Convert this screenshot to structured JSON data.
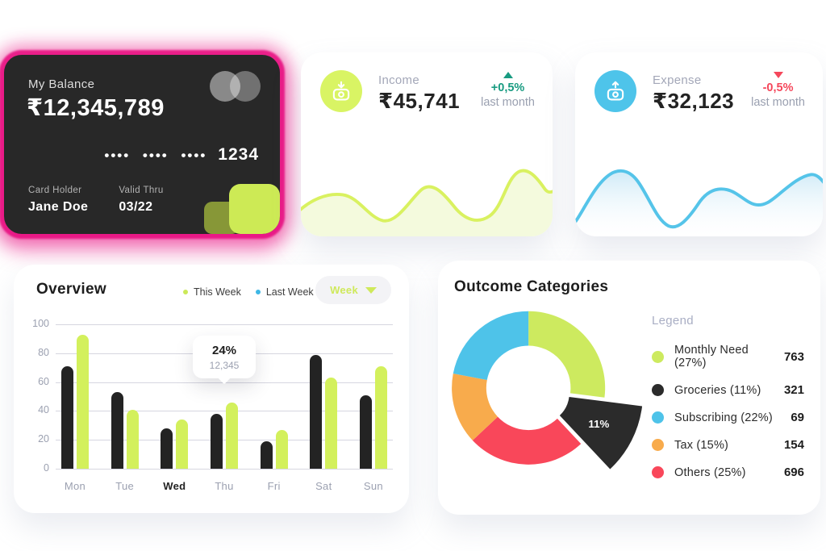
{
  "balance_card": {
    "label": "My Balance",
    "amount": "₹12,345,789",
    "masked_groups": "•••• •••• ••••",
    "last_digits": "1234",
    "card_holder_label": "Card Holder",
    "card_holder_name": "Jane Doe",
    "valid_thru_label": "Valid Thru",
    "valid_thru_value": "03/22",
    "glow_color": "#e7097e",
    "card_bg": "#282828",
    "accent_square_colors": [
      "#879737",
      "#cdea55"
    ]
  },
  "income_card": {
    "label": "Income",
    "amount": "₹45,741",
    "change": "+0,5%",
    "change_direction": "up",
    "change_color": "#189b81",
    "caption": "last month",
    "accent_color": "#d9f464"
  },
  "expense_card": {
    "label": "Expense",
    "amount": "₹32,123",
    "change": "-0,5%",
    "change_direction": "down",
    "change_color": "#f5475b",
    "caption": "last month",
    "accent_color": "#4ec4ea"
  },
  "overview": {
    "title": "Overview",
    "legend": [
      {
        "label": "This Week",
        "color": "#cbe958"
      },
      {
        "label": "Last Week",
        "color": "#3eb7e5"
      }
    ],
    "period_selector": {
      "label": "Week"
    },
    "tooltip": {
      "percent": "24%",
      "value": "12,345"
    },
    "chart_data": {
      "type": "bar",
      "categories": [
        "Mon",
        "Tue",
        "Wed",
        "Thu",
        "Fri",
        "Sat",
        "Sun"
      ],
      "series": [
        {
          "name": "Last Week",
          "color": "#232323",
          "values": [
            71,
            53,
            28,
            38,
            19,
            79,
            51
          ]
        },
        {
          "name": "This Week",
          "color": "#d3f05c",
          "values": [
            93,
            41,
            34,
            46,
            27,
            63,
            71
          ]
        }
      ],
      "yticks": [
        100,
        80,
        60,
        40,
        20,
        0
      ],
      "ylim": [
        0,
        100
      ],
      "grid": true,
      "highlighted_category": "Wed",
      "legend_position": "top"
    }
  },
  "outcome": {
    "title": "Outcome Categories",
    "legend_title": "Legend",
    "chart_data": {
      "type": "donut",
      "slices": [
        {
          "label": "Monthly Need",
          "pct": 27,
          "value": 763,
          "color": "#cdea5f",
          "exploded": false
        },
        {
          "label": "Groceries",
          "pct": 11,
          "value": 321,
          "color": "#2b2b2b",
          "exploded": true,
          "callout": "11%"
        },
        {
          "label": "Others",
          "pct": 25,
          "value": 696,
          "color": "#f9475a",
          "exploded": false
        },
        {
          "label": "Tax",
          "pct": 15,
          "value": 154,
          "color": "#f8ab4c",
          "exploded": false
        },
        {
          "label": "Subscribing",
          "pct": 22,
          "value": 69,
          "color": "#4ec3e9",
          "exploded": false
        }
      ],
      "legend_order": [
        "Monthly Need",
        "Groceries",
        "Subscribing",
        "Tax",
        "Others"
      ]
    }
  }
}
